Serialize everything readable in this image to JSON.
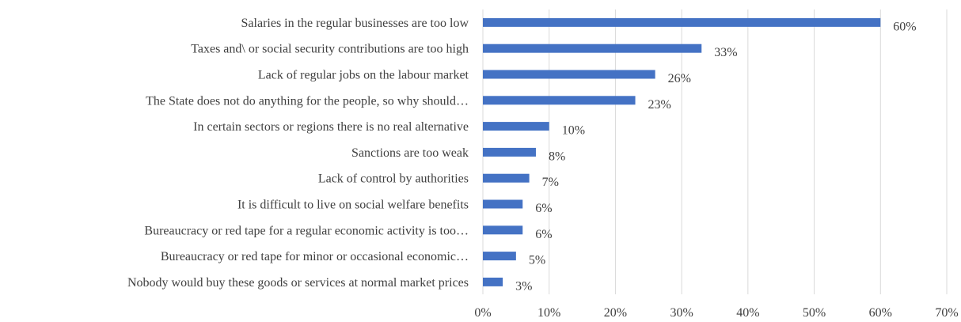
{
  "chart_data": {
    "type": "bar",
    "orientation": "horizontal",
    "categories": [
      "Salaries in the regular businesses are too low",
      "Taxes and\\ or social security contributions are too high",
      "Lack of regular jobs on the labour market",
      "The State does not do anything for the people, so why should…",
      "In certain sectors or regions there is no real alternative",
      "Sanctions are too weak",
      "Lack of control by authorities",
      "It is difficult to live on social welfare benefits",
      "Bureaucracy or red tape for a regular economic activity is too…",
      "Bureaucracy or red tape for minor or occasional economic…",
      "Nobody would buy these goods or services at normal market prices"
    ],
    "values": [
      60,
      33,
      26,
      23,
      10,
      8,
      7,
      6,
      6,
      5,
      3
    ],
    "data_labels": [
      "60%",
      "33%",
      "26%",
      "23%",
      "10%",
      "8%",
      "7%",
      "6%",
      "6%",
      "5%",
      "3%"
    ],
    "xlim": [
      0,
      70
    ],
    "x_ticks": [
      0,
      10,
      20,
      30,
      40,
      50,
      60,
      70
    ],
    "x_tick_labels": [
      "0%",
      "10%",
      "20%",
      "30%",
      "40%",
      "50%",
      "60%",
      "70%"
    ],
    "title": "",
    "xlabel": "",
    "ylabel": "",
    "grid": "vertical",
    "legend": "none",
    "colors": {
      "bar": "#4472C4",
      "grid": "#D9D9D9",
      "text": "#404040"
    }
  }
}
